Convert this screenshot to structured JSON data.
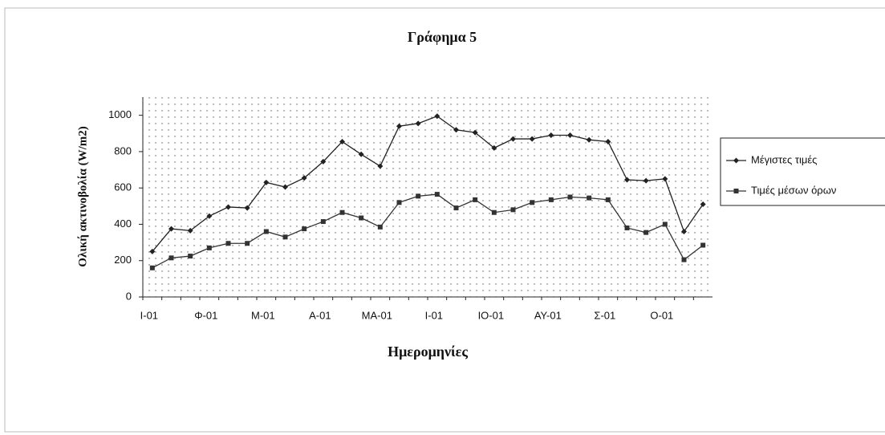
{
  "chart_data": {
    "type": "line",
    "title": "Γράφημα 5",
    "x_label": "Ημερομηνίες",
    "y_label": "Ολική ακτινοβολία (W/m2)",
    "categories": [
      "I-01",
      null,
      null,
      "Φ-01",
      null,
      null,
      "M-01",
      null,
      null,
      "A-01",
      null,
      null,
      "MA-01",
      null,
      null,
      "I-01",
      null,
      null,
      "IO-01",
      null,
      null,
      "AY-01",
      null,
      null,
      "Σ-01",
      null,
      null,
      "O-01",
      null,
      null
    ],
    "series": [
      {
        "name": "Μέγιστες τιμές",
        "color": "#222222",
        "values": [
          250,
          375,
          365,
          445,
          495,
          490,
          630,
          605,
          655,
          745,
          855,
          785,
          720,
          940,
          955,
          995,
          920,
          905,
          820,
          870,
          870,
          890,
          890,
          865,
          855,
          645,
          640,
          650,
          360,
          510
        ]
      },
      {
        "name": "Τιμές μέσων όρων",
        "color": "#333333",
        "values": [
          160,
          215,
          225,
          270,
          295,
          295,
          360,
          330,
          375,
          415,
          465,
          435,
          385,
          520,
          555,
          565,
          490,
          535,
          465,
          480,
          520,
          535,
          550,
          545,
          535,
          380,
          355,
          400,
          205,
          285
        ]
      }
    ],
    "ylim": [
      0,
      1100
    ],
    "yticks": [
      0,
      200,
      400,
      600,
      800,
      1000
    ],
    "grid": false,
    "legend": "right"
  }
}
